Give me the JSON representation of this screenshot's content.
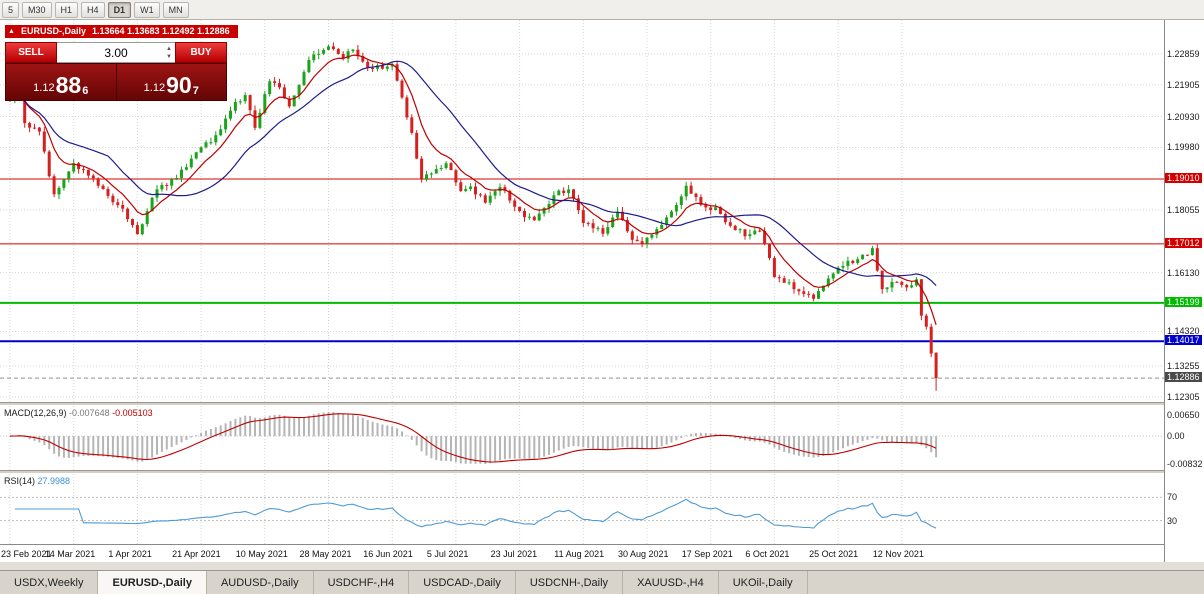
{
  "window": {
    "timeframes": [
      {
        "label": "5",
        "active": false
      },
      {
        "label": "M30",
        "active": false
      },
      {
        "label": "H1",
        "active": false
      },
      {
        "label": "H4",
        "active": false
      },
      {
        "label": "D1",
        "active": true
      },
      {
        "label": "W1",
        "active": false
      },
      {
        "label": "MN",
        "active": false
      }
    ],
    "tabs": [
      {
        "label": "USDX,Weekly",
        "active": false
      },
      {
        "label": "EURUSD-,Daily",
        "active": true
      },
      {
        "label": "AUDUSD-,Daily",
        "active": false
      },
      {
        "label": "USDCHF-,H4",
        "active": false
      },
      {
        "label": "USDCAD-,Daily",
        "active": false
      },
      {
        "label": "USDCNH-,Daily",
        "active": false
      },
      {
        "label": "XAUUSD-,H4",
        "active": false
      },
      {
        "label": "UKOil-,Daily",
        "active": false
      }
    ]
  },
  "chart_header": {
    "arrow": "▲",
    "symbol": "EURUSD-,Daily",
    "ohlc": "1.13664 1.13683 1.12492 1.12886"
  },
  "trade_panel": {
    "sell_label": "SELL",
    "buy_label": "BUY",
    "volume": "3.00",
    "sell_price_small": "1.12",
    "sell_price_big": "88",
    "sell_price_sup": "6",
    "buy_price_small": "1.12",
    "buy_price_big": "90",
    "buy_price_sup": "7"
  },
  "indicators": {
    "macd_name": "MACD(12,26,9)",
    "macd_value": "-0.007648",
    "macd_signal_value": "-0.005103",
    "rsi_name": "RSI(14)",
    "rsi_value": "27.9988"
  },
  "chart_data": {
    "type": "candlestick",
    "symbol": "EURUSD-",
    "timeframe": "Daily",
    "bars": 190,
    "last_ohlc": {
      "o": 1.13664,
      "h": 1.13683,
      "l": 1.12492,
      "c": 1.12886
    },
    "close_anchors": [
      [
        0,
        1.215
      ],
      [
        2,
        1.217
      ],
      [
        3,
        1.2075
      ],
      [
        6,
        1.2048
      ],
      [
        9,
        1.1852
      ],
      [
        13,
        1.195
      ],
      [
        16,
        1.1912
      ],
      [
        20,
        1.1852
      ],
      [
        23,
        1.181
      ],
      [
        26,
        1.1732
      ],
      [
        30,
        1.187
      ],
      [
        34,
        1.1907
      ],
      [
        38,
        1.1982
      ],
      [
        42,
        1.2035
      ],
      [
        46,
        1.214
      ],
      [
        48,
        1.216
      ],
      [
        50,
        1.206
      ],
      [
        53,
        1.22
      ],
      [
        55,
        1.2182
      ],
      [
        57,
        1.2122
      ],
      [
        61,
        1.227
      ],
      [
        65,
        1.2312
      ],
      [
        68,
        1.227
      ],
      [
        70,
        1.2302
      ],
      [
        72,
        1.2262
      ],
      [
        74,
        1.224
      ],
      [
        78,
        1.2252
      ],
      [
        80,
        1.2152
      ],
      [
        82,
        1.2042
      ],
      [
        84,
        1.1902
      ],
      [
        87,
        1.1932
      ],
      [
        89,
        1.1952
      ],
      [
        92,
        1.1862
      ],
      [
        94,
        1.1878
      ],
      [
        97,
        1.183
      ],
      [
        100,
        1.1878
      ],
      [
        104,
        1.1802
      ],
      [
        107,
        1.1775
      ],
      [
        111,
        1.1848
      ],
      [
        114,
        1.1872
      ],
      [
        117,
        1.1768
      ],
      [
        121,
        1.1735
      ],
      [
        124,
        1.1798
      ],
      [
        127,
        1.1715
      ],
      [
        129,
        1.17
      ],
      [
        133,
        1.1758
      ],
      [
        135,
        1.1798
      ],
      [
        138,
        1.1882
      ],
      [
        141,
        1.182
      ],
      [
        144,
        1.1812
      ],
      [
        147,
        1.1758
      ],
      [
        150,
        1.1728
      ],
      [
        153,
        1.1742
      ],
      [
        156,
        1.1602
      ],
      [
        158,
        1.1582
      ],
      [
        161,
        1.1558
      ],
      [
        164,
        1.1532
      ],
      [
        167,
        1.1597
      ],
      [
        170,
        1.1635
      ],
      [
        173,
        1.1652
      ],
      [
        176,
        1.1685
      ],
      [
        178,
        1.1562
      ],
      [
        180,
        1.1582
      ],
      [
        183,
        1.157
      ],
      [
        185,
        1.1592
      ],
      [
        186,
        1.148
      ],
      [
        187,
        1.1448
      ],
      [
        188,
        1.1362
      ],
      [
        189,
        1.12886
      ]
    ],
    "x_ticks": [
      [
        0,
        "23 Feb 2021"
      ],
      [
        13,
        "14 Mar 2021"
      ],
      [
        26,
        "1 Apr 2021"
      ],
      [
        39,
        "21 Apr 2021"
      ],
      [
        52,
        "10 May 2021"
      ],
      [
        65,
        "28 May 2021"
      ],
      [
        78,
        "16 Jun 2021"
      ],
      [
        91,
        "5 Jul 2021"
      ],
      [
        104,
        "23 Jul 2021"
      ],
      [
        117,
        "11 Aug 2021"
      ],
      [
        130,
        "30 Aug 2021"
      ],
      [
        143,
        "17 Sep 2021"
      ],
      [
        156,
        "6 Oct 2021"
      ],
      [
        169,
        "25 Oct 2021"
      ],
      [
        182,
        "12 Nov 2021"
      ]
    ],
    "y_axis": {
      "range": [
        1.1215,
        1.239
      ],
      "price_ticks": [
        "1.22859",
        "1.21905",
        "1.20930",
        "1.19980",
        "1.18055",
        "1.16130",
        "1.14320",
        "1.13255",
        "1.12305"
      ]
    },
    "levels": [
      {
        "price": 1.1901,
        "label": "1.19010",
        "color": "#d40000",
        "width": 1
      },
      {
        "price": 1.17012,
        "label": "1.17012",
        "color": "#d40000",
        "width": 1
      },
      {
        "price": 1.15199,
        "label": "1.15199",
        "color": "#00bb00",
        "width": 2
      },
      {
        "price": 1.14017,
        "label": "1.14017",
        "color": "#0000cd",
        "width": 2
      }
    ],
    "current_price": {
      "value": 1.12886,
      "label": "1.12886",
      "color": "#4a4a4a"
    },
    "moving_averages": [
      {
        "period": 8,
        "color": "#c00000"
      },
      {
        "period": 21,
        "color": "#1c1c8c"
      }
    ],
    "macd": {
      "axis_values": [
        0.0065,
        0,
        -0.00832
      ],
      "axis_labels": [
        "0.00650",
        "0.00",
        "-0.00832"
      ],
      "hist_color": "#b5b5b5",
      "signal_color": "#c00000"
    },
    "rsi": {
      "period": 14,
      "levels": [
        70,
        30
      ],
      "level_labels": [
        "70",
        "30"
      ],
      "color": "#4f9bd5"
    },
    "candle_up_color": "#1cа21c",
    "candle_colors": {
      "up": "#1ca21c",
      "down": "#d62020"
    }
  }
}
